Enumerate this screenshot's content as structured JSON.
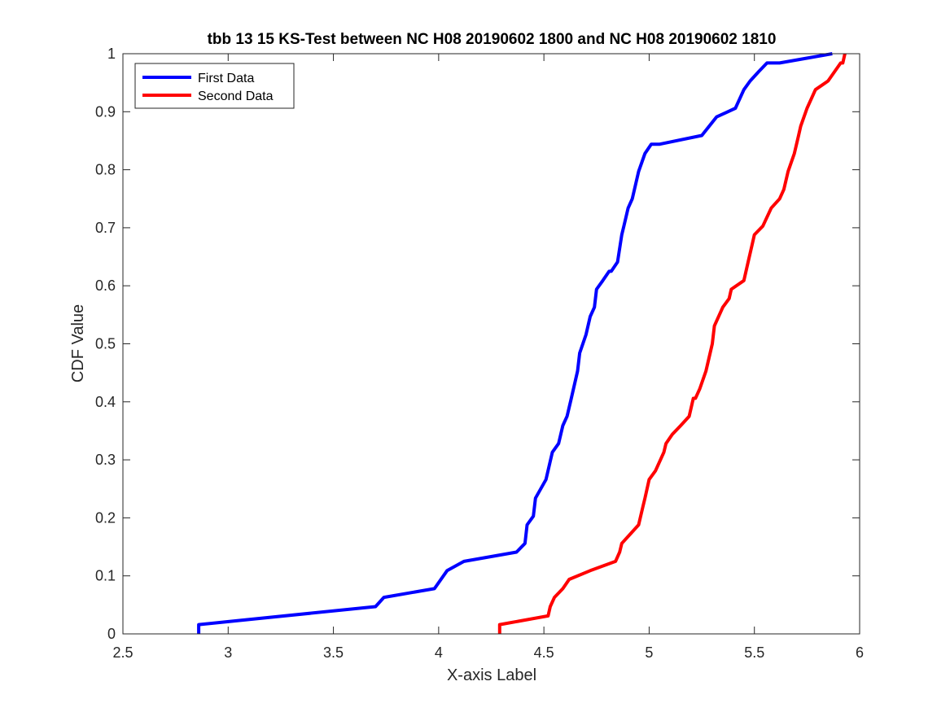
{
  "chart_data": {
    "type": "line",
    "title": "tbb 13 15 KS-Test between NC H08 20190602 1800 and NC H08 20190602 1810",
    "xlabel": "X-axis Label",
    "ylabel": "CDF Value",
    "xlim": [
      2.5,
      6
    ],
    "ylim": [
      0,
      1
    ],
    "xticks": [
      "2.5",
      "3",
      "3.5",
      "4",
      "4.5",
      "5",
      "5.5",
      "6"
    ],
    "yticks": [
      "0",
      "0.1",
      "0.2",
      "0.3",
      "0.4",
      "0.5",
      "0.6",
      "0.7",
      "0.8",
      "0.9",
      "1"
    ],
    "grid": false,
    "legend_position": "top-left",
    "series": [
      {
        "name": "First Data",
        "color": "#0000ff",
        "x": [
          2.86,
          2.86,
          3.7,
          3.74,
          3.98,
          4.04,
          4.12,
          4.37,
          4.41,
          4.42,
          4.45,
          4.46,
          4.51,
          4.54,
          4.57,
          4.59,
          4.61,
          4.63,
          4.66,
          4.67,
          4.7,
          4.72,
          4.74,
          4.75,
          4.78,
          4.81,
          4.82,
          4.85,
          4.87,
          4.88,
          4.9,
          4.92,
          4.95,
          4.98,
          5.01,
          5.02,
          5.05,
          5.25,
          5.32,
          5.41,
          5.45,
          5.48,
          5.52,
          5.56,
          5.62,
          5.87
        ],
        "y": [
          0.0,
          0.016,
          0.047,
          0.063,
          0.078,
          0.109,
          0.125,
          0.141,
          0.156,
          0.188,
          0.203,
          0.234,
          0.266,
          0.313,
          0.328,
          0.359,
          0.375,
          0.406,
          0.453,
          0.484,
          0.516,
          0.547,
          0.563,
          0.594,
          0.609,
          0.625,
          0.625,
          0.641,
          0.688,
          0.703,
          0.734,
          0.75,
          0.797,
          0.828,
          0.844,
          0.844,
          0.844,
          0.859,
          0.891,
          0.906,
          0.938,
          0.953,
          0.969,
          0.984,
          0.984,
          1.0
        ]
      },
      {
        "name": "Second Data",
        "color": "#ff0000",
        "x": [
          4.29,
          4.29,
          4.52,
          4.53,
          4.55,
          4.59,
          4.62,
          4.72,
          4.84,
          4.86,
          4.87,
          4.91,
          4.95,
          4.97,
          4.98,
          5.0,
          5.03,
          5.07,
          5.08,
          5.11,
          5.15,
          5.19,
          5.21,
          5.22,
          5.24,
          5.27,
          5.3,
          5.31,
          5.35,
          5.38,
          5.39,
          5.45,
          5.47,
          5.49,
          5.5,
          5.5,
          5.54,
          5.58,
          5.62,
          5.64,
          5.66,
          5.69,
          5.71,
          5.72,
          5.75,
          5.79,
          5.85,
          5.91,
          5.92,
          5.93
        ],
        "y": [
          0.0,
          0.016,
          0.031,
          0.047,
          0.063,
          0.078,
          0.094,
          0.109,
          0.125,
          0.141,
          0.156,
          0.172,
          0.188,
          0.219,
          0.234,
          0.266,
          0.281,
          0.313,
          0.328,
          0.344,
          0.359,
          0.375,
          0.406,
          0.406,
          0.422,
          0.453,
          0.5,
          0.531,
          0.563,
          0.578,
          0.594,
          0.609,
          0.641,
          0.672,
          0.688,
          0.688,
          0.703,
          0.734,
          0.75,
          0.766,
          0.797,
          0.828,
          0.859,
          0.875,
          0.906,
          0.938,
          0.953,
          0.984,
          0.984,
          1.0
        ]
      }
    ]
  }
}
